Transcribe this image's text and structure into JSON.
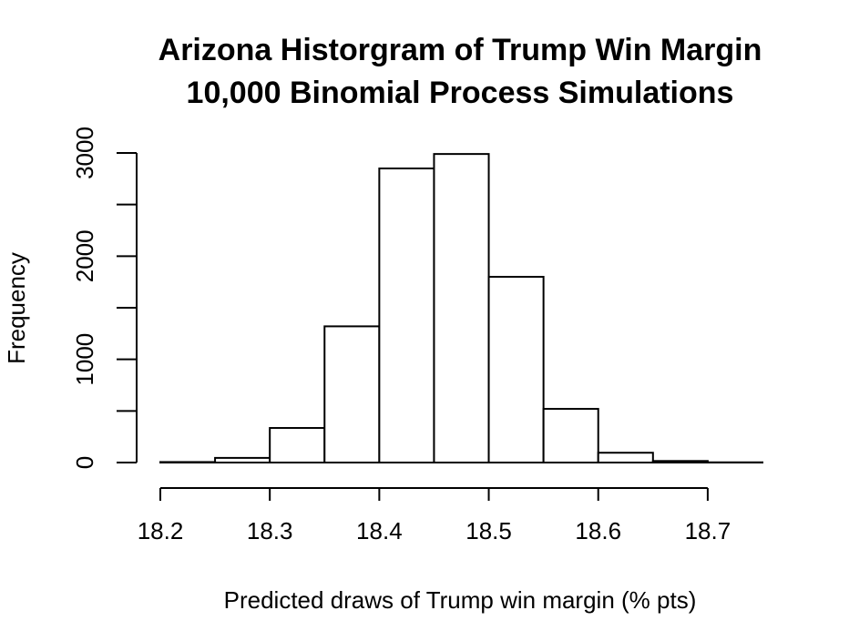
{
  "chart_data": {
    "type": "bar",
    "title": "Arizona Historgram of Trump Win Margin",
    "subtitle": "10,000 Binomial Process Simulations",
    "xlabel": "Predicted draws of Trump win margin (% pts)",
    "ylabel": "Frequency",
    "bin_edges": [
      18.2,
      18.25,
      18.3,
      18.35,
      18.4,
      18.45,
      18.5,
      18.55,
      18.6,
      18.65,
      18.7,
      18.75
    ],
    "values": [
      5,
      45,
      335,
      1320,
      2850,
      2990,
      1800,
      520,
      95,
      15,
      2
    ],
    "xlim": [
      18.2,
      18.75
    ],
    "ylim": [
      0,
      3000
    ],
    "x_ticks": [
      "18.2",
      "18.3",
      "18.4",
      "18.5",
      "18.6",
      "18.7"
    ],
    "y_ticks": [
      "0",
      "1000",
      "2000",
      "3000"
    ],
    "grid": false,
    "colors": {
      "bar_fill": "#ffffff",
      "bar_stroke": "#000000"
    }
  }
}
